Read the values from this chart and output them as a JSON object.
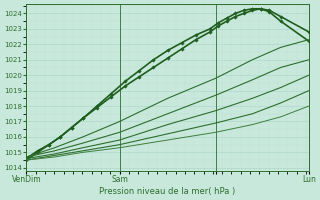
{
  "bg_color": "#c8e8dc",
  "grid_major_color": "#b0d8cc",
  "grid_minor_color": "#c0e0d4",
  "line_color": "#2d6e2d",
  "ylim": [
    1013.8,
    1024.6
  ],
  "yticks": [
    1014,
    1015,
    1016,
    1017,
    1018,
    1019,
    1020,
    1021,
    1022,
    1023,
    1024
  ],
  "xlim": [
    0,
    1.0
  ],
  "xtick_positions": [
    0.0,
    0.33,
    0.67,
    1.0
  ],
  "xtick_labels": [
    "VenDim",
    "Sam",
    "",
    "Lun"
  ],
  "xlabel": "Pression niveau de la mer( hPa )",
  "series": [
    {
      "x": [
        0.0,
        0.04,
        0.08,
        0.12,
        0.16,
        0.2,
        0.25,
        0.3,
        0.35,
        0.4,
        0.45,
        0.5,
        0.55,
        0.6,
        0.65,
        0.68,
        0.71,
        0.74,
        0.77,
        0.8,
        0.83,
        0.86,
        0.9,
        1.0
      ],
      "y": [
        1014.5,
        1015.0,
        1015.5,
        1016.0,
        1016.6,
        1017.2,
        1018.0,
        1018.8,
        1019.6,
        1020.3,
        1021.0,
        1021.6,
        1022.1,
        1022.6,
        1023.0,
        1023.4,
        1023.7,
        1024.0,
        1024.2,
        1024.3,
        1024.3,
        1024.1,
        1023.5,
        1022.2
      ],
      "lw": 1.2,
      "marker": "D",
      "ms": 1.8,
      "color": "#1e5e1e"
    },
    {
      "x": [
        0.0,
        0.04,
        0.08,
        0.12,
        0.16,
        0.2,
        0.25,
        0.3,
        0.35,
        0.4,
        0.45,
        0.5,
        0.55,
        0.6,
        0.65,
        0.68,
        0.71,
        0.74,
        0.77,
        0.8,
        0.83,
        0.86,
        0.9,
        1.0
      ],
      "y": [
        1014.6,
        1015.1,
        1015.5,
        1016.0,
        1016.6,
        1017.2,
        1017.9,
        1018.6,
        1019.3,
        1019.9,
        1020.5,
        1021.1,
        1021.7,
        1022.3,
        1022.8,
        1023.2,
        1023.5,
        1023.8,
        1024.0,
        1024.2,
        1024.3,
        1024.2,
        1023.8,
        1022.8
      ],
      "lw": 1.2,
      "marker": "D",
      "ms": 1.8,
      "color": "#1e5e1e"
    },
    {
      "x": [
        0.0,
        0.1,
        0.2,
        0.33,
        0.5,
        0.67,
        0.8,
        0.9,
        1.0
      ],
      "y": [
        1014.7,
        1015.3,
        1016.0,
        1017.0,
        1018.5,
        1019.8,
        1021.0,
        1021.8,
        1022.3
      ],
      "lw": 0.8,
      "marker": null,
      "ms": 0,
      "color": "#2d6e2d"
    },
    {
      "x": [
        0.0,
        0.1,
        0.2,
        0.33,
        0.5,
        0.67,
        0.8,
        0.9,
        1.0
      ],
      "y": [
        1014.7,
        1015.1,
        1015.6,
        1016.3,
        1017.5,
        1018.7,
        1019.7,
        1020.5,
        1021.0
      ],
      "lw": 0.8,
      "marker": null,
      "ms": 0,
      "color": "#2d6e2d"
    },
    {
      "x": [
        0.0,
        0.1,
        0.2,
        0.33,
        0.5,
        0.67,
        0.8,
        0.9,
        1.0
      ],
      "y": [
        1014.6,
        1014.9,
        1015.3,
        1015.8,
        1016.8,
        1017.7,
        1018.5,
        1019.2,
        1020.0
      ],
      "lw": 0.8,
      "marker": null,
      "ms": 0,
      "color": "#2d6e2d"
    },
    {
      "x": [
        0.0,
        0.1,
        0.2,
        0.33,
        0.5,
        0.67,
        0.8,
        0.9,
        1.0
      ],
      "y": [
        1014.5,
        1014.8,
        1015.1,
        1015.5,
        1016.2,
        1016.9,
        1017.5,
        1018.2,
        1019.0
      ],
      "lw": 0.8,
      "marker": null,
      "ms": 0,
      "color": "#2d6e2d"
    },
    {
      "x": [
        0.0,
        0.1,
        0.2,
        0.33,
        0.5,
        0.67,
        0.8,
        0.9,
        1.0
      ],
      "y": [
        1014.5,
        1014.7,
        1015.0,
        1015.3,
        1015.8,
        1016.3,
        1016.8,
        1017.3,
        1018.0
      ],
      "lw": 0.7,
      "marker": null,
      "ms": 0,
      "color": "#3d7e3d"
    }
  ],
  "vlines_x": [
    0.0,
    0.33,
    0.67,
    1.0
  ],
  "figsize": [
    3.2,
    2.0
  ],
  "dpi": 100
}
